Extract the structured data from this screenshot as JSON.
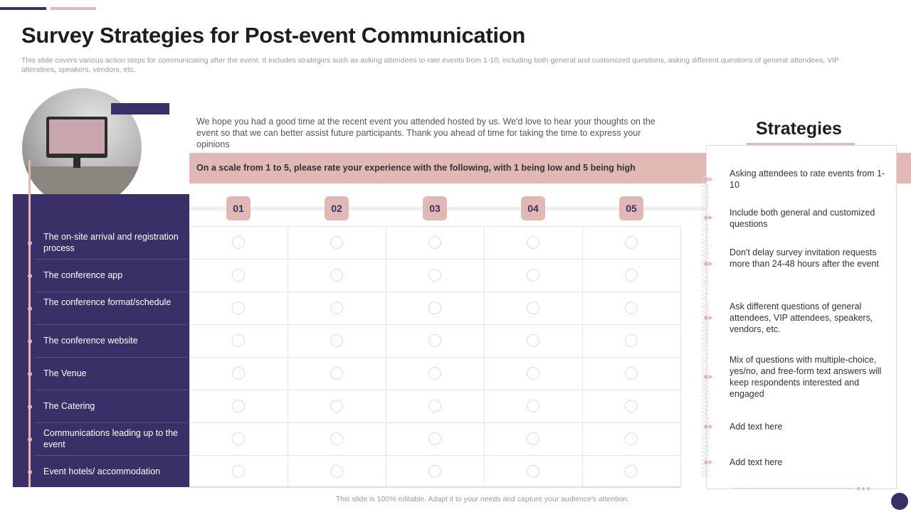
{
  "slide": {
    "title": "Survey Strategies for Post-event Communication",
    "subtitle": "This slide covers various action steps for communicating after the event. It includes strategies such as asking attendees to rate events from 1-10, including both general and customized questions, asking different questions of general attendees, VIP attendees, speakers, vendors, etc.",
    "footer": "This slide is 100% editable. Adapt it to your needs and capture your audience's attention."
  },
  "survey": {
    "intro": "We hope you had a good time at the recent event  you attended hosted by us. We'd love to hear your thoughts on the event  so that we can better assist future  participants. Thank you ahead  of time for taking the time to express your opinions",
    "scale_prompt": "On a scale from 1 to 5, please rate your experience with the following, with 1 being low and 5 being high",
    "ratings": [
      "01",
      "02",
      "03",
      "04",
      "05"
    ],
    "items": [
      "The on-site arrival  and registration process",
      "The conference  app",
      "The conference  format/schedule",
      "The conference  website",
      "The Venue",
      "The Catering",
      "Communications  leading up to the event",
      "Event hotels/ accommodation"
    ]
  },
  "strategies": {
    "title": "Strategies",
    "items": [
      "Asking attendees to rate events from 1-10",
      "Include both general and customized questions",
      "Don't delay survey invitation requests more than 24-48 hours after the event",
      "Ask different  questions of general attendees,  VIP attendees,  speakers, vendors,  etc.",
      "Mix of questions with multiple-choice, yes/no, and free-form  text answers will keep respondents interested and engaged",
      "Add text here",
      "Add text here"
    ]
  },
  "colors": {
    "primary": "#3a2f66",
    "accent": "#e2b8b4"
  }
}
